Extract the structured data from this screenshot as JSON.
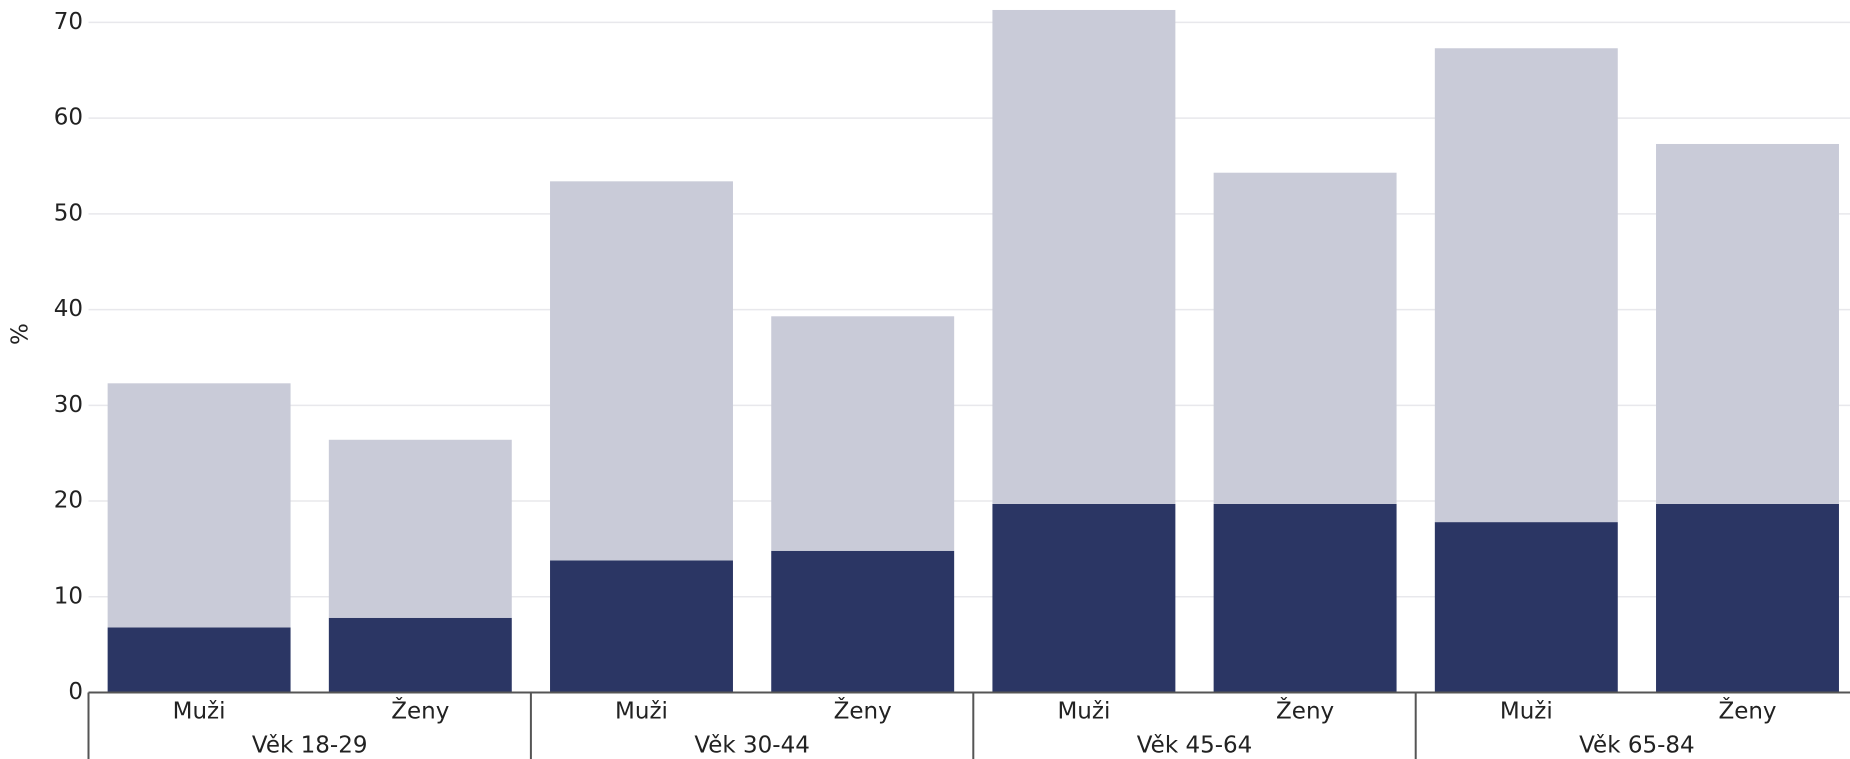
{
  "chart_data": {
    "type": "stacked_bar",
    "y_label": "%",
    "categories": [
      "Muži",
      "Ženy",
      "Muži",
      "Ženy",
      "Muži",
      "Ženy",
      "Muži",
      "Ženy"
    ],
    "groups": [
      "Věk 18-29",
      "Věk 30-44",
      "Věk 45-64",
      "Věk 65-84"
    ],
    "series": [
      {
        "color": "#2b3664",
        "values": [
          6.8,
          7.8,
          13.8,
          14.8,
          19.7,
          19.7,
          17.8,
          19.7
        ]
      },
      {
        "color": "#c9cbd8",
        "values": [
          25.5,
          18.6,
          39.6,
          24.5,
          51.6,
          34.6,
          49.5,
          37.6
        ]
      }
    ],
    "ylim": [
      0,
      72.3
    ],
    "yticks": [
      0,
      10,
      20,
      30,
      40,
      50,
      60,
      70
    ],
    "grid": true
  }
}
